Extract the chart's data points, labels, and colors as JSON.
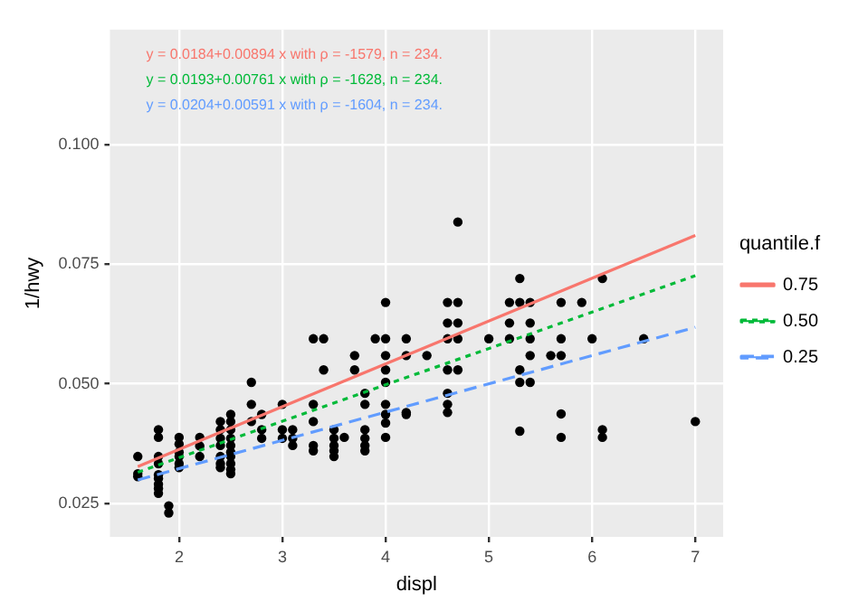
{
  "chart_data": {
    "type": "scatter",
    "xlabel": "displ",
    "ylabel": "1/hwy",
    "legend_title": "quantile.f",
    "legend": "right",
    "grid": true,
    "xlim": [
      1.33,
      7.27
    ],
    "ylim": [
      0.018,
      0.124
    ],
    "xticks": [
      2,
      3,
      4,
      5,
      6,
      7
    ],
    "yticks": [
      {
        "value": 0.025,
        "label": "0.025"
      },
      {
        "value": 0.05,
        "label": "0.050"
      },
      {
        "value": 0.075,
        "label": "0.075"
      },
      {
        "value": 0.1,
        "label": "0.100"
      }
    ],
    "annotations": [
      "y = 0.0184+0.00894 x with ρ = -1579, n = 234.",
      "y = 0.0193+0.00761 x with ρ = -1628, n = 234.",
      "y = 0.0204+0.00591 x with ρ = -1604, n = 234."
    ],
    "series": [
      {
        "type": "scatter",
        "color": "#000000",
        "marker": "circle",
        "x": [
          1.6,
          1.6,
          1.6,
          1.8,
          1.8,
          1.8,
          1.8,
          1.8,
          1.8,
          1.8,
          1.8,
          1.8,
          1.9,
          1.9,
          2.0,
          2.0,
          2.0,
          2.0,
          2.0,
          2.0,
          2.2,
          2.2,
          2.2,
          2.4,
          2.4,
          2.4,
          2.4,
          2.4,
          2.4,
          2.4,
          2.5,
          2.5,
          2.5,
          2.5,
          2.5,
          2.5,
          2.5,
          2.5,
          2.5,
          2.5,
          2.7,
          2.7,
          2.7,
          2.8,
          2.8,
          2.8,
          3.0,
          3.0,
          3.0,
          3.1,
          3.1,
          3.1,
          3.3,
          3.3,
          3.3,
          3.3,
          3.3,
          3.4,
          3.4,
          3.5,
          3.5,
          3.5,
          3.5,
          3.5,
          3.6,
          3.7,
          3.7,
          3.8,
          3.8,
          3.8,
          3.8,
          3.8,
          3.8,
          3.9,
          4.0,
          4.0,
          4.0,
          4.0,
          4.0,
          4.0,
          4.0,
          4.0,
          4.0,
          4.2,
          4.2,
          4.2,
          4.2,
          4.4,
          4.6,
          4.6,
          4.6,
          4.6,
          4.6,
          4.6,
          4.6,
          4.7,
          4.7,
          4.7,
          4.7,
          4.7,
          5.0,
          5.2,
          5.2,
          5.2,
          5.3,
          5.3,
          5.3,
          5.3,
          5.3,
          5.4,
          5.4,
          5.4,
          5.4,
          5.4,
          5.6,
          5.7,
          5.7,
          5.7,
          5.7,
          5.7,
          5.9,
          6.0,
          6.1,
          6.1,
          6.1,
          6.5,
          7.0
        ],
        "values": [
          0.0348,
          0.0312,
          0.0306,
          0.0404,
          0.0388,
          0.0348,
          0.0333,
          0.031,
          0.0302,
          0.029,
          0.0281,
          0.0271,
          0.0245,
          0.023,
          0.0388,
          0.0374,
          0.0357,
          0.0348,
          0.0333,
          0.0325,
          0.0388,
          0.037,
          0.0348,
          0.0421,
          0.0404,
          0.0386,
          0.0371,
          0.0348,
          0.0333,
          0.0325,
          0.0436,
          0.0421,
          0.0404,
          0.0386,
          0.0371,
          0.0357,
          0.0348,
          0.0333,
          0.0321,
          0.0312,
          0.0503,
          0.0457,
          0.0421,
          0.0436,
          0.0404,
          0.0386,
          0.0457,
          0.0404,
          0.0386,
          0.0404,
          0.0386,
          0.0371,
          0.0594,
          0.0457,
          0.0421,
          0.0371,
          0.036,
          0.0594,
          0.0529,
          0.0404,
          0.0386,
          0.0371,
          0.036,
          0.0348,
          0.0388,
          0.0559,
          0.0529,
          0.048,
          0.0457,
          0.0404,
          0.0386,
          0.0371,
          0.036,
          0.0594,
          0.067,
          0.0594,
          0.0559,
          0.0529,
          0.0503,
          0.0457,
          0.0436,
          0.0418,
          0.0388,
          0.0594,
          0.0559,
          0.044,
          0.0436,
          0.0559,
          0.067,
          0.0627,
          0.0594,
          0.0529,
          0.048,
          0.0457,
          0.044,
          0.0838,
          0.067,
          0.0627,
          0.0594,
          0.0529,
          0.0594,
          0.067,
          0.0627,
          0.0594,
          0.072,
          0.067,
          0.0529,
          0.0503,
          0.0401,
          0.067,
          0.0627,
          0.0594,
          0.0559,
          0.0503,
          0.0559,
          0.067,
          0.0594,
          0.0559,
          0.0437,
          0.0388,
          0.067,
          0.0594,
          0.072,
          0.0404,
          0.0388,
          0.0594,
          0.0421
        ]
      },
      {
        "type": "line",
        "name": "0.75",
        "color": "#f8766d",
        "line_style": "solid",
        "marker": "none",
        "x": [
          1.6,
          7.0
        ],
        "values": [
          0.0327,
          0.081
        ]
      },
      {
        "type": "line",
        "name": "0.50",
        "color": "#00ba38",
        "line_style": "dotted",
        "marker": "none",
        "x": [
          1.6,
          7.0
        ],
        "values": [
          0.0315,
          0.0726
        ]
      },
      {
        "type": "line",
        "name": "0.25",
        "color": "#619cff",
        "line_style": "dashed",
        "marker": "none",
        "x": [
          1.6,
          7.0
        ],
        "values": [
          0.0299,
          0.0618
        ]
      }
    ]
  }
}
